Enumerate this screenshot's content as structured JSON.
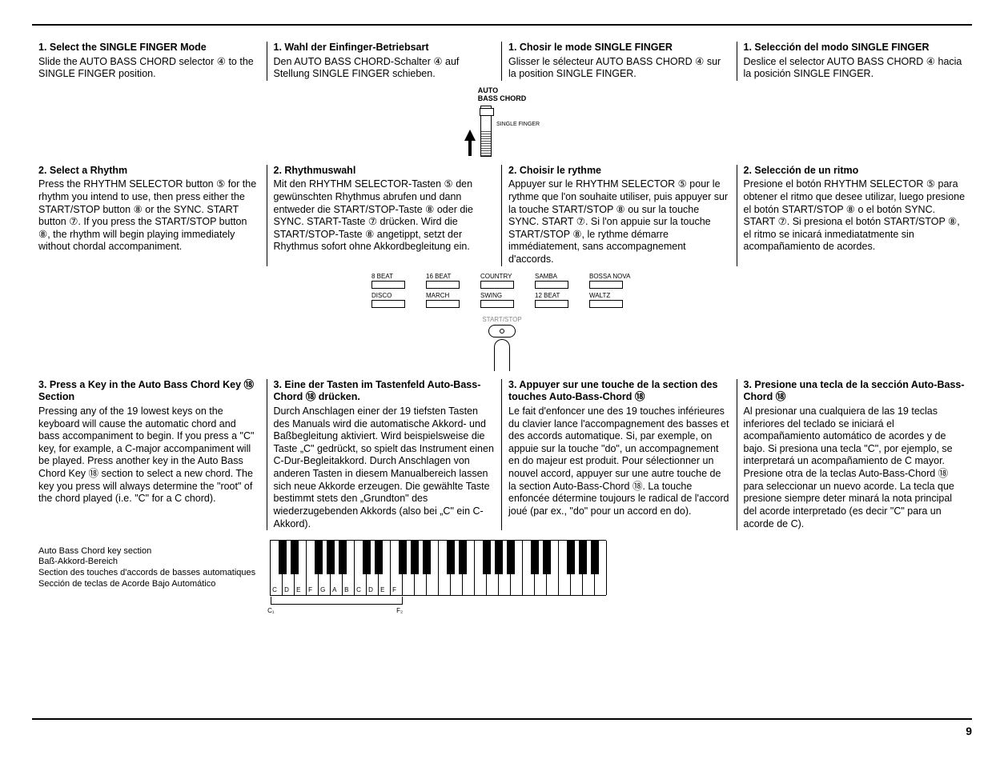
{
  "section1": {
    "en": {
      "h": "1. Select the SINGLE FINGER Mode",
      "b": "Slide the AUTO BASS CHORD selector ④ to the SINGLE FINGER position."
    },
    "de": {
      "h": "1. Wahl der Einfinger-Betriebsart",
      "b": "Den AUTO BASS CHORD-Schalter ④ auf Stellung SINGLE FINGER schieben."
    },
    "fr": {
      "h": "1. Chosir le mode SINGLE FINGER",
      "b": "Glisser le sélecteur AUTO BASS CHORD ④ sur la position SINGLE FINGER."
    },
    "es": {
      "h": "1. Selección del modo SINGLE FINGER",
      "b": "Deslice el selector AUTO BASS CHORD ④ hacia la posición SINGLE FINGER."
    }
  },
  "slider": {
    "top": "AUTO",
    "top2": "BASS CHORD",
    "side": "SINGLE FINGER"
  },
  "section2": {
    "en": {
      "h": "2. Select a Rhythm",
      "b": "Press the RHYTHM SELECTOR button ⑤ for the rhythm you intend to use, then press either the START/STOP button ⑧ or the SYNC. START button ⑦. If you press the START/STOP button ⑧, the rhythm will begin playing immediately without chordal accompaniment."
    },
    "de": {
      "h": "2. Rhythmuswahl",
      "b": "Mit den RHYTHM SELECTOR-Tasten ⑤ den gewünschten Rhythmus abrufen und dann entweder die START/STOP-Taste ⑧ oder die SYNC. START-Taste ⑦ drücken. Wird die START/STOP-Taste ⑧ angetippt, setzt der Rhythmus sofort ohne Akkordbegleitung ein."
    },
    "fr": {
      "h": "2. Choisir le rythme",
      "b": "Appuyer sur le RHYTHM SELECTOR ⑤ pour le rythme que l'on souhaite utiliser, puis appuyer sur la touche START/STOP ⑧ ou sur la touche SYNC. START ⑦. Si l'on appuie sur la touche START/STOP ⑧, le rythme démarre immédiatement, sans accompagnement d'accords."
    },
    "es": {
      "h": "2. Selección de un ritmo",
      "b": "Presione el botón RHYTHM SELECTOR ⑤ para obtener el ritmo que desee utilizar, luego presione el botón START/STOP ⑧ o el botón SYNC. START ⑦. Si presiona el botón START/STOP ⑧, el ritmo se inicará inmediatatmente sin acompañamiento de acordes."
    }
  },
  "rhythms": [
    "8 BEAT",
    "16 BEAT",
    "COUNTRY",
    "SAMBA",
    "BOSSA NOVA",
    "DISCO",
    "MARCH",
    "SWING",
    "12 BEAT",
    "WALTZ"
  ],
  "press_label": "START/STOP",
  "section3": {
    "en": {
      "h": "3. Press a Key in the Auto Bass Chord Key ⑱ Section",
      "b": "Pressing any of the 19 lowest keys on the keyboard will cause the automatic chord and bass accompaniment to begin. If you press a \"C\" key, for example, a C-major accompaniment will be played. Press another key in the Auto Bass Chord Key ⑱ section to select a new chord. The key you press will always determine the \"root\" of the chord played (i.e. \"C\" for a C chord)."
    },
    "de": {
      "h": "3. Eine der Tasten im Tastenfeld Auto-Bass-Chord ⑱ drücken.",
      "b": "Durch Anschlagen einer der 19 tiefsten Tasten des Manuals wird die automatische Akkord- und Baßbegleitung aktiviert. Wird beispielsweise die Taste „C\" gedrückt, so spielt das Instrument einen C-Dur-Begleitakkord. Durch Anschlagen von anderen Tasten in diesem Manualbereich lassen sich neue Akkorde erzeugen. Die gewählte Taste bestimmt stets den „Grundton\" des wiederzugebenden Akkords (also bei „C\" ein C-Akkord)."
    },
    "fr": {
      "h": "3. Appuyer sur une touche de la section des touches Auto-Bass-Chord ⑱",
      "b": "Le fait d'enfoncer une des 19 touches inférieures du clavier lance l'accompagnement des basses et des accords automatique. Si, par exemple, on appuie sur la touche \"do\", un accompagnement en do majeur est produit. Pour sélectionner un nouvel accord, appuyer sur une autre touche de la section Auto-Bass-Chord ⑱. La touche enfoncée détermine toujours le radical de l'accord joué (par ex., \"do\" pour un accord en do)."
    },
    "es": {
      "h": "3. Presione una tecla de la sección Auto-Bass-Chord ⑱",
      "b": "Al presionar una cualquiera de las 19 teclas inferiores del teclado se iniciará el acompañamiento automático de acordes y de bajo. Si presiona una tecla \"C\", por ejemplo, se interpretará un acompañamiento de C mayor. Presione otra de la teclas Auto-Bass-Chord ⑱ para seleccionar un nuevo acorde. La tecla que presione siempre deter minará la nota principal del acorde interpretado (es decir \"C\" para un acorde de C)."
    }
  },
  "keyboard": {
    "caption_en": "Auto Bass Chord key section",
    "caption_de": "Baß-Akkord-Bereich",
    "caption_fr": "Section des touches d'accords de basses automatiques",
    "caption_es": "Sección de teclas de Acorde Bajo Automático",
    "white_keys": 28,
    "labeled": [
      "C",
      "D",
      "E",
      "F",
      "G",
      "A",
      "B",
      "C",
      "D",
      "E",
      "F"
    ],
    "bracket_left": "C₁",
    "bracket_right": "F₂"
  },
  "page_number": "9"
}
